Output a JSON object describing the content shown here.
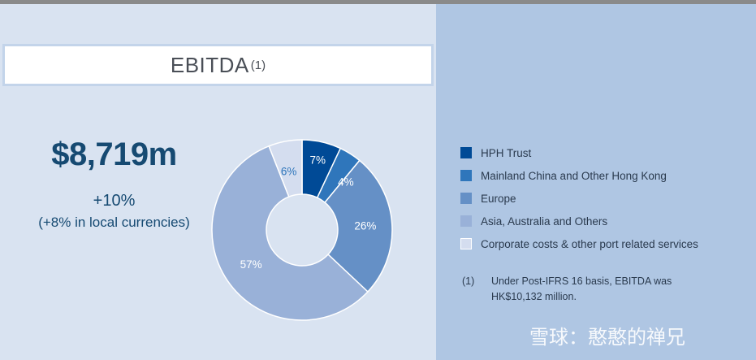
{
  "title": {
    "text": "EBITDA",
    "footnote_mark": "(1)"
  },
  "headline": {
    "value": "$8,719m",
    "growth": "+10%",
    "growth_local": "(+8% in local currencies)"
  },
  "chart_data": {
    "type": "pie",
    "style": "donut",
    "title": "",
    "categories": [
      "HPH Trust",
      "Mainland China and Other Hong Kong",
      "Europe",
      "Asia, Australia and Others",
      "Corporate costs & other port related services"
    ],
    "values": [
      7,
      4,
      26,
      57,
      6
    ],
    "labels": [
      "7%",
      "4%",
      "26%",
      "57%",
      "6%"
    ],
    "colors": [
      "#004a96",
      "#2f76bb",
      "#6590c6",
      "#99b1d8",
      "#d4ddef"
    ],
    "label_colors": [
      "#ffffff",
      "#ffffff",
      "#ffffff",
      "#ffffff",
      "#2f76bb"
    ],
    "legend_placement": "right"
  },
  "legend": {
    "items": [
      {
        "label": "HPH Trust",
        "color": "#004a96"
      },
      {
        "label": "Mainland China and Other Hong Kong",
        "color": "#2f76bb"
      },
      {
        "label": "Europe",
        "color": "#6590c6"
      },
      {
        "label": "Asia, Australia and Others",
        "color": "#99b1d8"
      },
      {
        "label": "Corporate costs & other port related services",
        "color": "#d4ddef"
      }
    ]
  },
  "footnote": {
    "num": "(1)",
    "line1": "Under Post-IFRS 16 basis,  EBITDA was",
    "line2": "HK$10,132 million."
  },
  "watermark": "雪球：憨憨的禅兄"
}
